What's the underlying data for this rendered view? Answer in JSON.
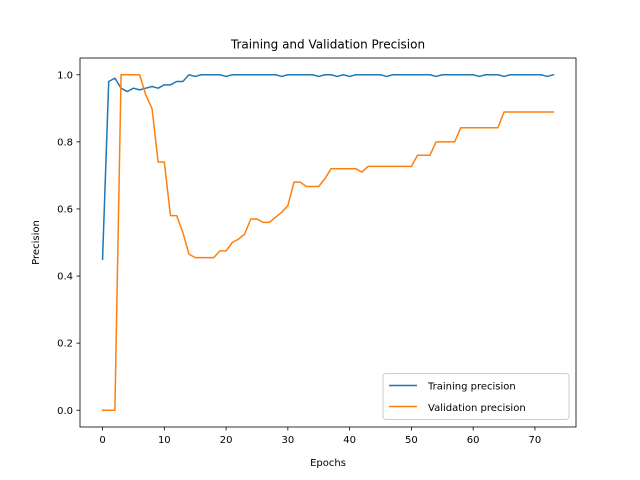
{
  "chart_data": {
    "type": "line",
    "title": "Training and Validation Precision",
    "xlabel": "Epochs",
    "ylabel": "Precision",
    "xlim": [
      -3.65,
      76.65
    ],
    "ylim": [
      -0.05,
      1.05
    ],
    "xticks": [
      0,
      10,
      20,
      30,
      40,
      50,
      60,
      70
    ],
    "yticks": [
      0.0,
      0.2,
      0.4,
      0.6,
      0.8,
      1.0
    ],
    "xtick_labels": [
      "0",
      "10",
      "20",
      "30",
      "40",
      "50",
      "60",
      "70"
    ],
    "ytick_labels": [
      "0.0",
      "0.2",
      "0.4",
      "0.6",
      "0.8",
      "1.0"
    ],
    "grid": false,
    "legend_position": "lower-right",
    "colors": {
      "training": "#1f77b4",
      "validation": "#ff7f0e"
    },
    "x": [
      0,
      1,
      2,
      3,
      4,
      5,
      6,
      7,
      8,
      9,
      10,
      11,
      12,
      13,
      14,
      15,
      16,
      17,
      18,
      19,
      20,
      21,
      22,
      23,
      24,
      25,
      26,
      27,
      28,
      29,
      30,
      31,
      32,
      33,
      34,
      35,
      36,
      37,
      38,
      39,
      40,
      41,
      42,
      43,
      44,
      45,
      46,
      47,
      48,
      49,
      50,
      51,
      52,
      53,
      54,
      55,
      56,
      57,
      58,
      59,
      60,
      61,
      62,
      63,
      64,
      65,
      66,
      67,
      68,
      69,
      70,
      71,
      72,
      73
    ],
    "series": [
      {
        "name": "Training precision",
        "color": "#1f77b4",
        "values": [
          0.45,
          0.98,
          0.99,
          0.96,
          0.95,
          0.96,
          0.955,
          0.96,
          0.965,
          0.96,
          0.97,
          0.97,
          0.98,
          0.98,
          1.0,
          0.995,
          1.0,
          1.0,
          1.0,
          1.0,
          0.995,
          1.0,
          1.0,
          1.0,
          1.0,
          1.0,
          1.0,
          1.0,
          1.0,
          0.995,
          1.0,
          1.0,
          1.0,
          1.0,
          1.0,
          0.995,
          1.0,
          1.0,
          0.995,
          1.0,
          0.995,
          1.0,
          1.0,
          1.0,
          1.0,
          1.0,
          0.995,
          1.0,
          1.0,
          1.0,
          1.0,
          1.0,
          1.0,
          1.0,
          0.995,
          1.0,
          1.0,
          1.0,
          1.0,
          1.0,
          1.0,
          0.995,
          1.0,
          1.0,
          1.0,
          0.995,
          1.0,
          1.0,
          1.0,
          1.0,
          1.0,
          1.0,
          0.995,
          1.0
        ]
      },
      {
        "name": "Validation precision",
        "color": "#ff7f0e",
        "values": [
          0.0,
          0.0,
          0.0,
          1.0,
          1.0,
          1.0,
          1.0,
          0.94,
          0.9,
          0.74,
          0.74,
          0.58,
          0.58,
          0.53,
          0.465,
          0.455,
          0.455,
          0.455,
          0.455,
          0.475,
          0.475,
          0.5,
          0.51,
          0.525,
          0.57,
          0.57,
          0.56,
          0.56,
          0.575,
          0.59,
          0.61,
          0.68,
          0.68,
          0.667,
          0.667,
          0.667,
          0.69,
          0.72,
          0.72,
          0.72,
          0.72,
          0.72,
          0.71,
          0.727,
          0.727,
          0.727,
          0.727,
          0.727,
          0.727,
          0.727,
          0.727,
          0.76,
          0.76,
          0.76,
          0.8,
          0.8,
          0.8,
          0.8,
          0.842,
          0.842,
          0.842,
          0.842,
          0.842,
          0.842,
          0.842,
          0.889,
          0.889,
          0.889,
          0.889,
          0.889,
          0.889,
          0.889,
          0.889,
          0.889
        ]
      }
    ]
  }
}
